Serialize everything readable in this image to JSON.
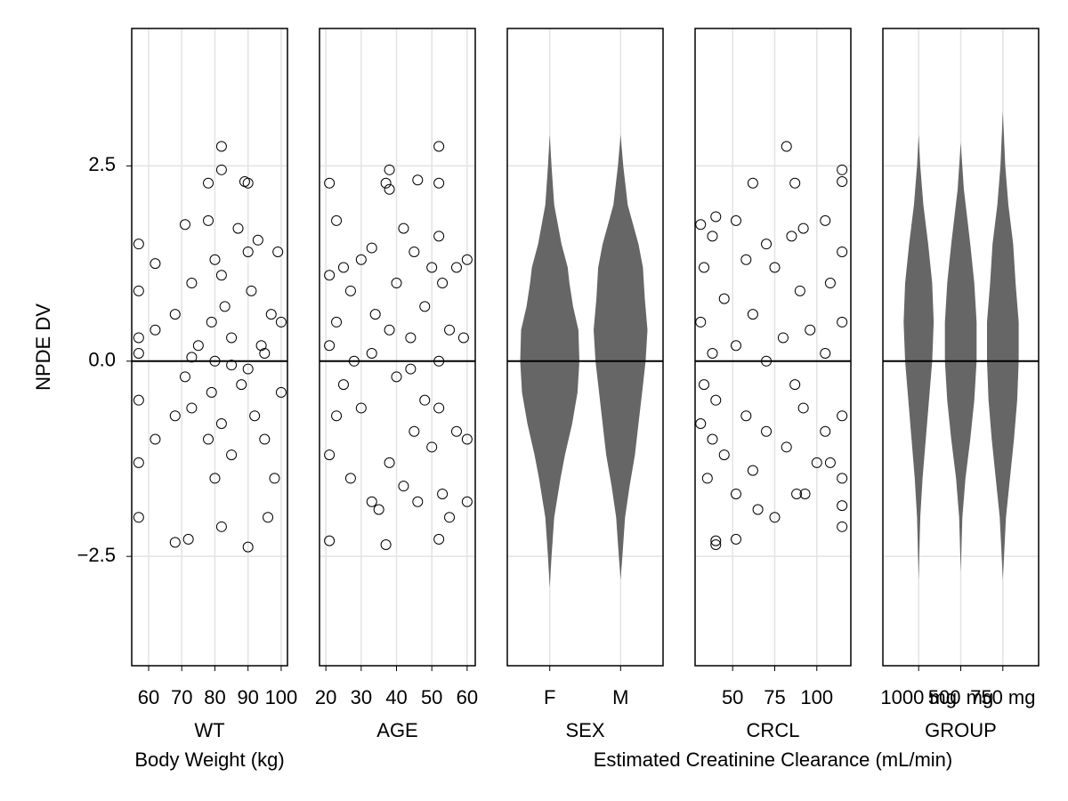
{
  "chart_data": {
    "type": "faceted",
    "ylabel": "NPDE DV",
    "ylim": [
      -3.9,
      4.26
    ],
    "yticks": [
      {
        "value": -2.5,
        "label": "−2.5"
      },
      {
        "value": 0,
        "label": "0.0"
      },
      2.5
    ],
    "hline": 0,
    "grid": true,
    "panels": [
      {
        "type": "scatter",
        "xlabel": "WT",
        "xlabel_long": "Body Weight (kg)",
        "xlim": [
          54.9,
          101.9
        ],
        "xticks": [
          60,
          70,
          80,
          90,
          100
        ],
        "x": [
          57,
          57,
          57,
          57,
          57,
          57,
          62,
          62,
          62,
          68,
          68,
          68,
          71,
          71,
          72,
          73,
          73,
          75,
          78,
          78,
          78,
          79,
          79,
          80,
          80,
          80,
          82,
          82,
          82,
          82,
          82,
          83,
          85,
          85,
          87,
          88,
          89,
          90,
          90,
          90,
          90,
          91,
          92,
          93,
          94,
          95,
          96,
          97,
          98,
          99,
          100,
          100,
          57,
          73,
          85,
          95
        ],
        "y": [
          1.5,
          0.9,
          0.3,
          -0.5,
          -1.3,
          -2.0,
          1.25,
          0.4,
          -1.0,
          0.6,
          -0.7,
          -2.32,
          1.75,
          -0.2,
          -2.28,
          1.0,
          -0.6,
          0.2,
          2.28,
          1.8,
          -1.0,
          0.5,
          -0.4,
          1.3,
          0.0,
          -1.5,
          2.75,
          2.45,
          1.1,
          -0.8,
          -2.12,
          0.7,
          0.3,
          -1.2,
          1.7,
          -0.3,
          2.3,
          2.28,
          1.4,
          -0.1,
          -2.38,
          0.9,
          -0.7,
          1.55,
          0.2,
          -1.0,
          -2.0,
          0.6,
          -1.5,
          1.4,
          -0.4,
          0.5,
          0.1,
          0.05,
          -0.05,
          0.1
        ]
      },
      {
        "type": "scatter",
        "xlabel": "AGE",
        "xlim": [
          18.2,
          62.3
        ],
        "xticks": [
          20,
          30,
          40,
          50,
          60
        ],
        "x": [
          21,
          21,
          21,
          21,
          21,
          23,
          23,
          23,
          25,
          25,
          27,
          27,
          30,
          30,
          33,
          33,
          33,
          34,
          35,
          37,
          37,
          38,
          38,
          38,
          38,
          40,
          40,
          42,
          42,
          44,
          45,
          45,
          46,
          46,
          48,
          48,
          50,
          50,
          52,
          52,
          52,
          52,
          52,
          52,
          53,
          53,
          55,
          55,
          57,
          57,
          59,
          60,
          60,
          60,
          28,
          44
        ],
        "y": [
          2.28,
          1.1,
          0.2,
          -1.2,
          -2.3,
          1.8,
          0.5,
          -0.7,
          1.2,
          -0.3,
          0.9,
          -1.5,
          1.3,
          -0.6,
          1.45,
          0.1,
          -1.8,
          0.6,
          -1.9,
          2.28,
          -2.35,
          2.45,
          2.2,
          0.4,
          -1.3,
          1.0,
          -0.2,
          1.7,
          -1.6,
          0.3,
          1.4,
          -0.9,
          2.32,
          -1.8,
          0.7,
          -0.5,
          1.2,
          -1.1,
          2.75,
          2.28,
          1.6,
          0.0,
          -0.6,
          -2.28,
          1.0,
          -1.7,
          0.4,
          -2.0,
          1.2,
          -0.9,
          0.3,
          1.3,
          -1.0,
          -1.8,
          0.0,
          -0.1
        ]
      },
      {
        "type": "violin",
        "xlabel": "SEX",
        "xlim": [
          -0.6,
          1.6
        ],
        "categories": [
          "F",
          "M"
        ],
        "color": "#666666",
        "violins": [
          {
            "y": [
              2.9,
              2.5,
              2.0,
              1.5,
              1.2,
              1.0,
              0.7,
              0.4,
              0.0,
              -0.4,
              -0.8,
              -1.2,
              -1.5,
              -2.0,
              -2.5,
              -2.9
            ],
            "half_widths": [
              0,
              0.025,
              0.063,
              0.165,
              0.253,
              0.278,
              0.329,
              0.405,
              0.418,
              0.392,
              0.316,
              0.215,
              0.152,
              0.063,
              0.025,
              0
            ]
          },
          {
            "y": [
              2.9,
              2.5,
              2.0,
              1.5,
              1.2,
              0.8,
              0.4,
              0.0,
              -0.4,
              -0.8,
              -1.2,
              -1.6,
              -2.0,
              -2.5,
              -2.8
            ],
            "half_widths": [
              0,
              0.038,
              0.101,
              0.253,
              0.316,
              0.342,
              0.38,
              0.354,
              0.304,
              0.253,
              0.203,
              0.127,
              0.063,
              0.025,
              0
            ]
          }
        ]
      },
      {
        "type": "scatter",
        "xlabel": "CRCL",
        "xlabel_long": "Estimated Creatinine Clearance (mL/min)",
        "xlim": [
          27.7,
          120.2
        ],
        "xticks": [
          50,
          75,
          100
        ],
        "x": [
          31,
          31,
          31,
          33,
          33,
          35,
          38,
          38,
          38,
          40,
          40,
          40,
          40,
          45,
          45,
          52,
          52,
          52,
          52,
          58,
          58,
          62,
          62,
          62,
          65,
          70,
          70,
          70,
          75,
          75,
          80,
          82,
          82,
          85,
          87,
          87,
          88,
          90,
          92,
          92,
          93,
          96,
          100,
          105,
          105,
          105,
          108,
          108,
          115,
          115,
          115,
          115,
          115,
          115,
          115,
          115
        ],
        "y": [
          1.75,
          0.5,
          -0.8,
          1.2,
          -0.3,
          -1.5,
          1.6,
          0.1,
          -1.0,
          1.85,
          -0.5,
          -2.3,
          -2.35,
          0.8,
          -1.2,
          1.8,
          0.2,
          -1.7,
          -2.28,
          1.3,
          -0.7,
          2.28,
          0.6,
          -1.4,
          -1.9,
          1.5,
          0.0,
          -0.9,
          1.2,
          -2.0,
          0.3,
          2.75,
          -1.1,
          1.6,
          2.28,
          -0.3,
          -1.7,
          0.9,
          1.7,
          -0.6,
          -1.7,
          0.4,
          -1.3,
          1.8,
          0.1,
          -0.9,
          1.0,
          -1.3,
          2.45,
          2.3,
          1.4,
          0.5,
          -0.7,
          -1.5,
          -2.12,
          -1.85
        ]
      },
      {
        "type": "violin",
        "xlabel": "GROUP",
        "xlim": [
          -0.85,
          2.85
        ],
        "categories": [
          "1000 mg",
          "500 mg",
          "750 mg"
        ],
        "color": "#666666",
        "violins": [
          {
            "y": [
              2.9,
              2.5,
              2.0,
              1.5,
              1.0,
              0.5,
              0.0,
              -0.5,
              -1.0,
              -1.5,
              -2.0,
              -2.8
            ],
            "half_widths": [
              0,
              0.038,
              0.113,
              0.226,
              0.321,
              0.358,
              0.321,
              0.245,
              0.17,
              0.094,
              0.038,
              0
            ]
          },
          {
            "y": [
              2.8,
              2.2,
              1.5,
              1.0,
              0.5,
              0.0,
              -0.5,
              -1.0,
              -1.5,
              -2.0,
              -2.7
            ],
            "half_widths": [
              0,
              0.075,
              0.226,
              0.321,
              0.377,
              0.377,
              0.321,
              0.226,
              0.113,
              0.038,
              0
            ]
          },
          {
            "y": [
              3.2,
              2.5,
              2.0,
              1.5,
              1.0,
              0.5,
              0.0,
              -0.5,
              -1.0,
              -1.5,
              -2.0,
              -2.8
            ],
            "half_widths": [
              0,
              0.057,
              0.132,
              0.245,
              0.302,
              0.377,
              0.377,
              0.34,
              0.264,
              0.17,
              0.075,
              0
            ]
          }
        ]
      }
    ]
  }
}
